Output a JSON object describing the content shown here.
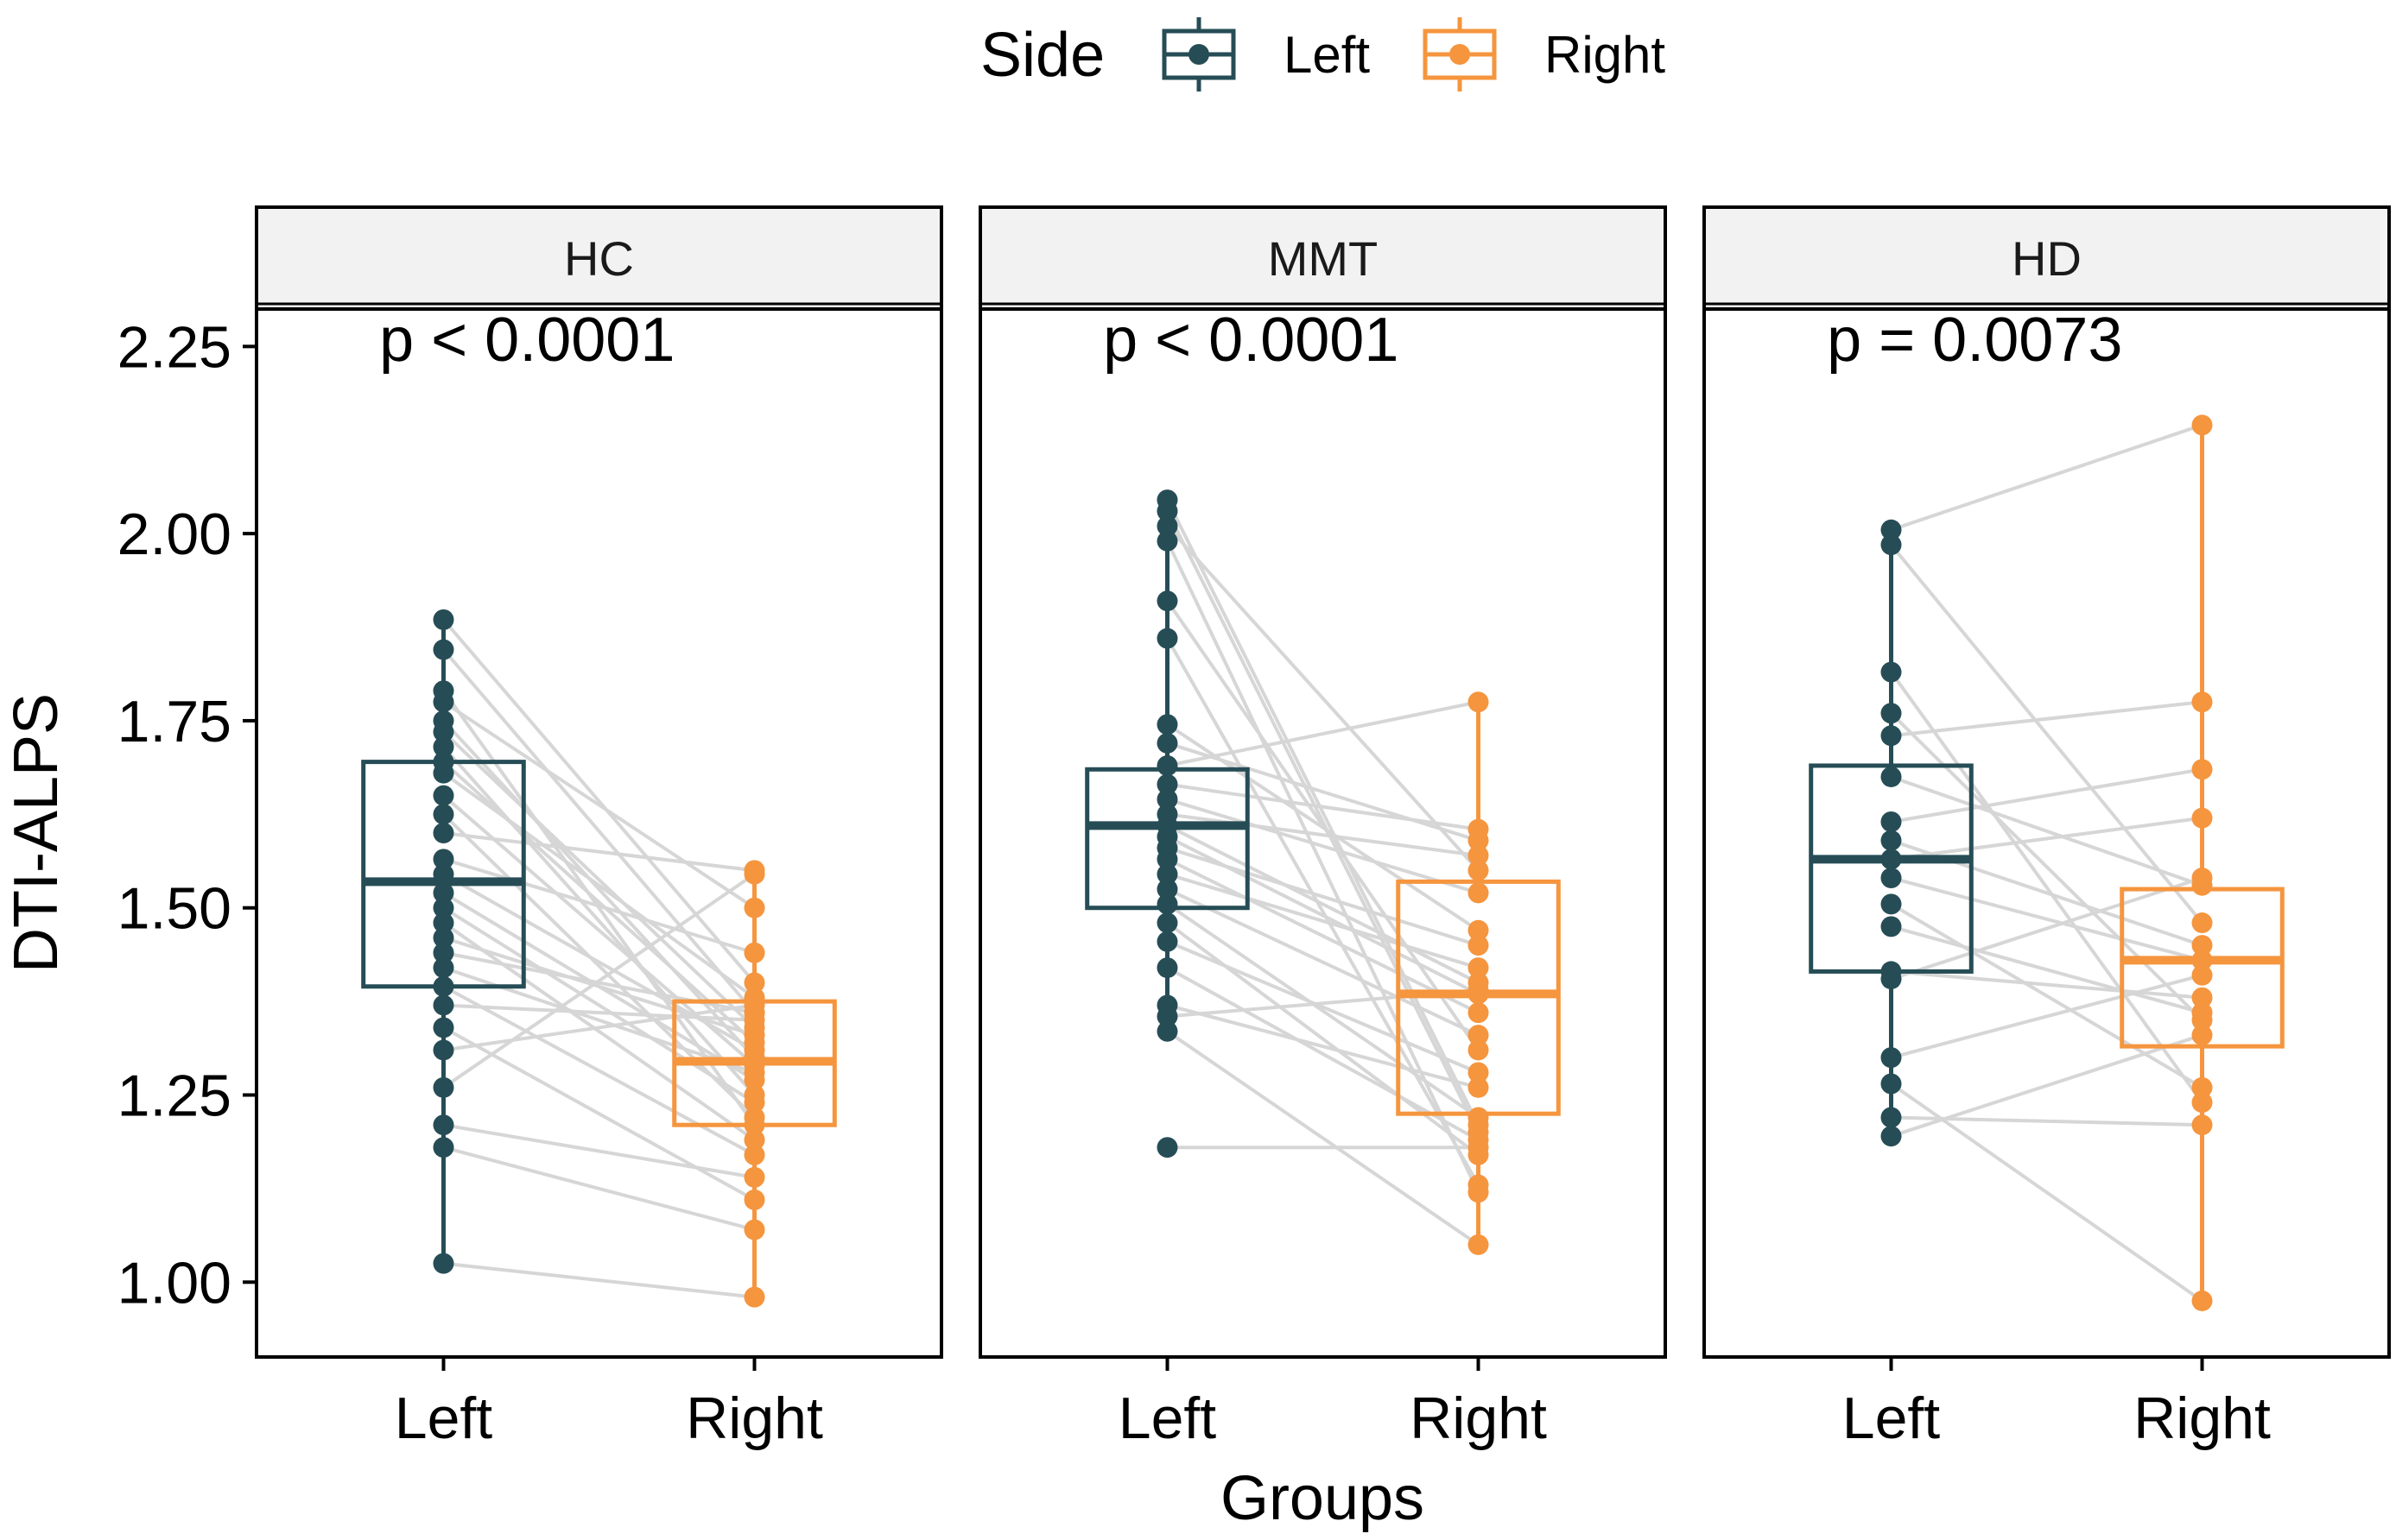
{
  "chart_data": {
    "type": "box",
    "subtype": "paired box plot with jittered points and connecting lines, faceted",
    "title": "",
    "xlabel": "Groups",
    "ylabel": "DTI-ALPS",
    "ylim": [
      0.9,
      2.3
    ],
    "yticks": [
      1.0,
      1.25,
      1.5,
      1.75,
      2.0,
      2.25
    ],
    "ytick_labels": [
      "1.00",
      "1.25",
      "1.50",
      "1.75",
      "2.00",
      "2.25"
    ],
    "categories": [
      "Left",
      "Right"
    ],
    "legend": {
      "title": "Side",
      "position": "top",
      "entries": [
        {
          "label": "Left",
          "color": "#264d56"
        },
        {
          "label": "Right",
          "color": "#f5953e"
        }
      ]
    },
    "colors": {
      "Left": "#264d56",
      "Right": "#f5953e",
      "pair_line": "#d6d6d6",
      "strip_fill": "#f2f2f2"
    },
    "facets": [
      {
        "name": "HC",
        "p_label": "p < 0.0001",
        "box": {
          "Left": {
            "q1": 1.395,
            "median": 1.535,
            "q3": 1.695,
            "whisker_low": 1.025,
            "whisker_high": 1.885
          },
          "Right": {
            "q1": 1.21,
            "median": 1.295,
            "q3": 1.375,
            "whisker_low": 0.98,
            "whisker_high": 1.545
          }
        },
        "pairs": [
          [
            1.885,
            1.4
          ],
          [
            1.845,
            1.36
          ],
          [
            1.79,
            1.21
          ],
          [
            1.775,
            1.5
          ],
          [
            1.75,
            1.3
          ],
          [
            1.735,
            1.34
          ],
          [
            1.715,
            1.25
          ],
          [
            1.695,
            1.32
          ],
          [
            1.68,
            1.38
          ],
          [
            1.65,
            1.29
          ],
          [
            1.625,
            1.22
          ],
          [
            1.6,
            1.55
          ],
          [
            1.565,
            1.44
          ],
          [
            1.545,
            1.31
          ],
          [
            1.52,
            1.27
          ],
          [
            1.5,
            1.24
          ],
          [
            1.48,
            1.19
          ],
          [
            1.46,
            1.33
          ],
          [
            1.44,
            1.36
          ],
          [
            1.42,
            1.28
          ],
          [
            1.395,
            1.17
          ],
          [
            1.37,
            1.35
          ],
          [
            1.34,
            1.11
          ],
          [
            1.31,
            1.37
          ],
          [
            1.26,
            1.545
          ],
          [
            1.21,
            1.14
          ],
          [
            1.18,
            1.07
          ],
          [
            1.025,
            0.98
          ]
        ]
      },
      {
        "name": "MMT",
        "p_label": "p < 0.0001",
        "box": {
          "Left": {
            "q1": 1.5,
            "median": 1.61,
            "q3": 1.685,
            "whisker_low": 1.335,
            "whisker_high": 2.045
          },
          "Right": {
            "q1": 1.225,
            "median": 1.385,
            "q3": 1.535,
            "whisker_low": 1.05,
            "whisker_high": 1.775
          }
        },
        "pairs": [
          [
            2.045,
            1.21
          ],
          [
            2.03,
            1.2
          ],
          [
            2.01,
            1.55
          ],
          [
            1.99,
            1.12
          ],
          [
            1.91,
            1.31
          ],
          [
            1.86,
            1.13
          ],
          [
            1.745,
            1.47
          ],
          [
            1.72,
            1.59
          ],
          [
            1.69,
            1.775
          ],
          [
            1.665,
            1.605
          ],
          [
            1.645,
            1.52
          ],
          [
            1.625,
            1.57
          ],
          [
            1.61,
            1.4
          ],
          [
            1.595,
            1.385
          ],
          [
            1.58,
            1.45
          ],
          [
            1.565,
            1.36
          ],
          [
            1.545,
            1.42
          ],
          [
            1.525,
            1.33
          ],
          [
            1.505,
            1.22
          ],
          [
            1.48,
            1.17
          ],
          [
            1.455,
            1.28
          ],
          [
            1.42,
            1.19
          ],
          [
            1.37,
            1.26
          ],
          [
            1.355,
            1.39
          ],
          [
            1.335,
            1.05
          ],
          [
            1.18,
            1.18
          ]
        ]
      },
      {
        "name": "HD",
        "p_label": "p = 0.0073",
        "box": {
          "Left": {
            "q1": 1.415,
            "median": 1.565,
            "q3": 1.69,
            "whisker_low": 1.195,
            "whisker_high": 2.005
          },
          "Right": {
            "q1": 1.315,
            "median": 1.43,
            "q3": 1.525,
            "whisker_low": 0.975,
            "whisker_high": 2.145
          }
        },
        "pairs": [
          [
            2.005,
            2.145
          ],
          [
            1.985,
            1.48
          ],
          [
            1.815,
            1.24
          ],
          [
            1.76,
            1.35
          ],
          [
            1.73,
            1.775
          ],
          [
            1.675,
            1.53
          ],
          [
            1.615,
            1.685
          ],
          [
            1.59,
            1.45
          ],
          [
            1.565,
            1.62
          ],
          [
            1.54,
            1.43
          ],
          [
            1.505,
            1.26
          ],
          [
            1.475,
            1.36
          ],
          [
            1.415,
            1.38
          ],
          [
            1.405,
            1.54
          ],
          [
            1.3,
            1.41
          ],
          [
            1.265,
            0.975
          ],
          [
            1.22,
            1.21
          ],
          [
            1.195,
            1.33
          ]
        ]
      }
    ]
  }
}
